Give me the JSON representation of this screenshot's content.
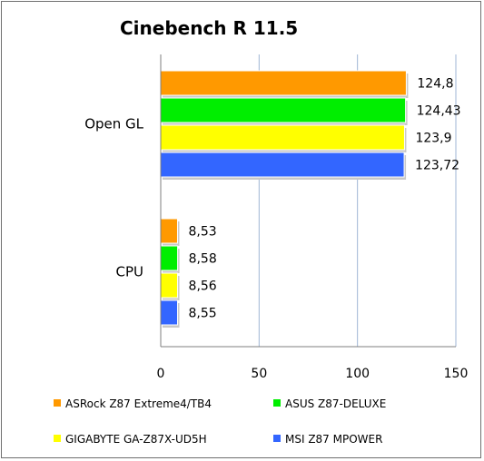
{
  "chart_data": {
    "type": "bar",
    "orientation": "horizontal",
    "title": "Cinebench R 11.5",
    "categories": [
      "Open GL",
      "CPU"
    ],
    "series": [
      {
        "name": "ASRock Z87 Extreme4/TB4",
        "color": "#ff9900",
        "values": [
          124.8,
          8.53
        ],
        "labels": [
          "124,8",
          "8,53"
        ]
      },
      {
        "name": "ASUS Z87-DELUXE",
        "color": "#00ee00",
        "values": [
          124.43,
          8.58
        ],
        "labels": [
          "124,43",
          "8,58"
        ]
      },
      {
        "name": "GIGABYTE GA-Z87X-UD5H",
        "color": "#ffff00",
        "values": [
          123.9,
          8.56
        ],
        "labels": [
          "123,9",
          "8,56"
        ]
      },
      {
        "name": "MSI Z87 MPOWER",
        "color": "#3366ff",
        "values": [
          123.72,
          8.55
        ],
        "labels": [
          "123,72",
          "8,55"
        ]
      }
    ],
    "xlim": [
      0,
      150
    ],
    "xticks": [
      0,
      50,
      100,
      150
    ],
    "grid": true,
    "legend_position": "bottom"
  }
}
